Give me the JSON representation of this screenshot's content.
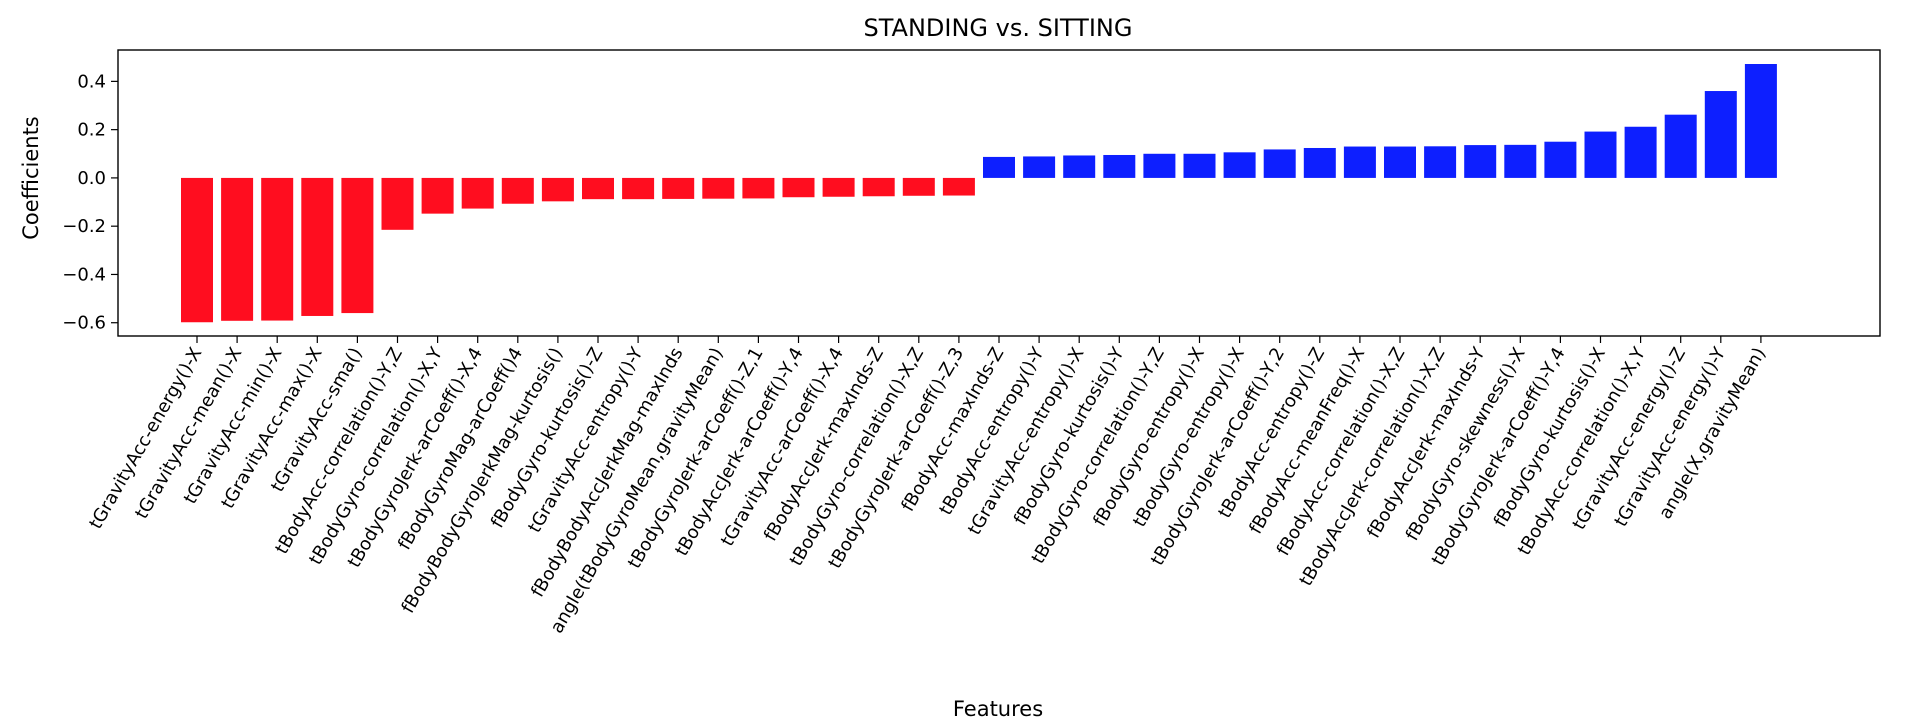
{
  "chart_data": {
    "type": "bar",
    "title": "STANDING vs. SITTING",
    "xlabel": "Features",
    "ylabel": "Coefficients",
    "ylim": [
      -0.655,
      0.53
    ],
    "yticks": [
      -0.6,
      -0.4,
      -0.2,
      0.0,
      0.2,
      0.4
    ],
    "ytick_labels": [
      "−0.6",
      "−0.4",
      "−0.2",
      "0.0",
      "0.2",
      "0.4"
    ],
    "grid": false,
    "legend": "none",
    "colors": {
      "negative": "#ff0d1f",
      "positive": "#0d1fff"
    },
    "categories": [
      "tGravityAcc-energy()-X",
      "tGravityAcc-mean()-X",
      "tGravityAcc-min()-X",
      "tGravityAcc-max()-X",
      "tGravityAcc-sma()",
      "tBodyAcc-correlation()-Y,Z",
      "tBodyGyro-correlation()-X,Y",
      "tBodyGyroJerk-arCoeff()-X,4",
      "fBodyGyroMag-arCoeff()4",
      "fBodyBodyGyroJerkMag-kurtosis()",
      "fBodyGyro-kurtosis()-Z",
      "tGravityAcc-entropy()-Y",
      "fBodyBodyAccJerkMag-maxInds",
      "angle(tBodyGyroMean,gravityMean)",
      "tBodyGyroJerk-arCoeff()-Z,1",
      "tBodyAccJerk-arCoeff()-Y,4",
      "tGravityAcc-arCoeff()-X,4",
      "fBodyAccJerk-maxInds-Z",
      "tBodyGyro-correlation()-X,Z",
      "tBodyGyroJerk-arCoeff()-Z,3",
      "fBodyAcc-maxInds-Z",
      "tBodyAcc-entropy()-Y",
      "tGravityAcc-entropy()-X",
      "fBodyGyro-kurtosis()-Y",
      "tBodyGyro-correlation()-Y,Z",
      "fBodyGyro-entropy()-X",
      "tBodyGyro-entropy()-X",
      "tBodyGyroJerk-arCoeff()-Y,2",
      "tBodyAcc-entropy()-Z",
      "fBodyAcc-meanFreq()-X",
      "fBodyAcc-correlation()-X,Z",
      "tBodyAccJerk-correlation()-X,Z",
      "fBodyAccJerk-maxInds-Y",
      "fBodyGyro-skewness()-X",
      "tBodyGyroJerk-arCoeff()-Y,4",
      "fBodyGyro-kurtosis()-X",
      "tBodyAcc-correlation()-X,Y",
      "tGravityAcc-energy()-Z",
      "tGravityAcc-energy()-Y",
      "angle(X,gravityMean)"
    ],
    "values": [
      -0.598,
      -0.592,
      -0.591,
      -0.572,
      -0.56,
      -0.215,
      -0.148,
      -0.127,
      -0.107,
      -0.097,
      -0.088,
      -0.088,
      -0.087,
      -0.086,
      -0.085,
      -0.08,
      -0.078,
      -0.076,
      -0.074,
      -0.073,
      0.087,
      0.089,
      0.093,
      0.095,
      0.1,
      0.1,
      0.106,
      0.118,
      0.124,
      0.13,
      0.13,
      0.131,
      0.136,
      0.137,
      0.15,
      0.192,
      0.212,
      0.262,
      0.36,
      0.472
    ]
  }
}
